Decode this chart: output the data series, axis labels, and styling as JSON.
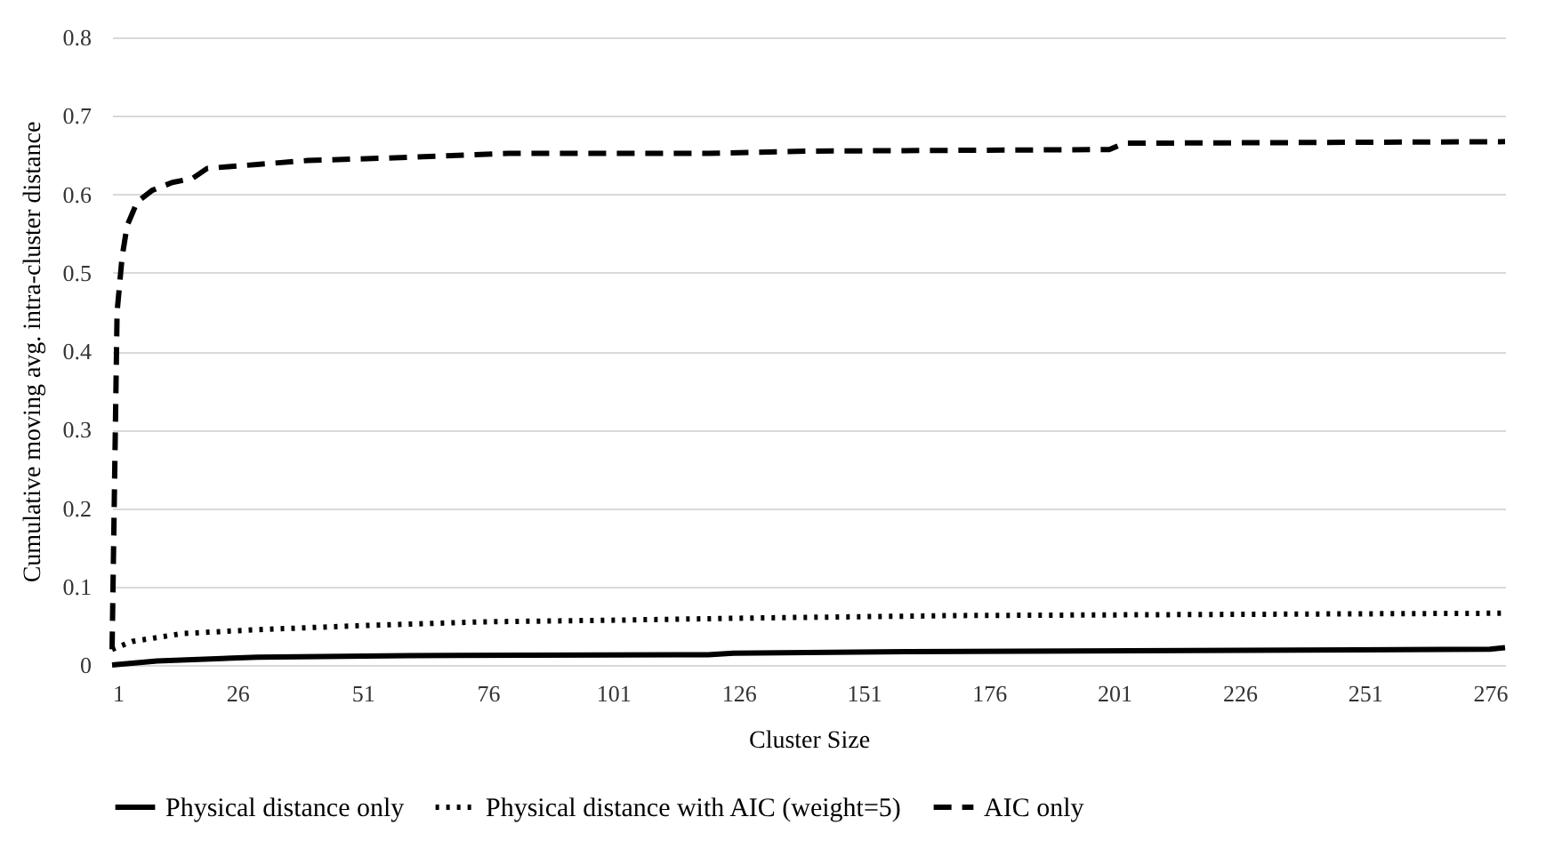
{
  "chart_data": {
    "type": "line",
    "xlabel": "Cluster Size",
    "ylabel": "Cumulative moving avg.  intra-cluster distance",
    "xlim": [
      1,
      279
    ],
    "xticks": [
      1,
      26,
      51,
      76,
      101,
      126,
      151,
      176,
      201,
      226,
      251,
      276
    ],
    "ylim": [
      0,
      0.8
    ],
    "yticks": [
      0,
      0.1,
      0.2,
      0.3,
      0.4,
      0.5,
      0.6,
      0.7,
      0.8
    ],
    "grid": "y",
    "legend": "bottom",
    "marker": "none",
    "series": [
      {
        "name": "Physical distance only",
        "color": "#000000",
        "line_style": "solid",
        "x": [
          1,
          10,
          30,
          60,
          120,
          125,
          160,
          276,
          279
        ],
        "values": [
          0.0,
          0.005,
          0.01,
          0.012,
          0.013,
          0.015,
          0.017,
          0.02,
          0.022
        ]
      },
      {
        "name": "Physical distance with AIC (weight=5)",
        "color": "#000000",
        "line_style": "dotted",
        "x": [
          1,
          5,
          15,
          30,
          50,
          75,
          100,
          130,
          170,
          279
        ],
        "values": [
          0.02,
          0.03,
          0.04,
          0.045,
          0.05,
          0.055,
          0.057,
          0.06,
          0.063,
          0.066
        ]
      },
      {
        "name": "AIC only",
        "color": "#000000",
        "line_style": "dashed",
        "x": [
          1,
          2,
          3,
          4,
          6,
          9,
          13,
          17,
          20,
          30,
          40,
          60,
          80,
          120,
          140,
          200,
          203,
          279
        ],
        "values": [
          0.02,
          0.45,
          0.52,
          0.56,
          0.59,
          0.605,
          0.615,
          0.62,
          0.633,
          0.638,
          0.643,
          0.647,
          0.652,
          0.652,
          0.655,
          0.657,
          0.665,
          0.667
        ]
      }
    ]
  }
}
